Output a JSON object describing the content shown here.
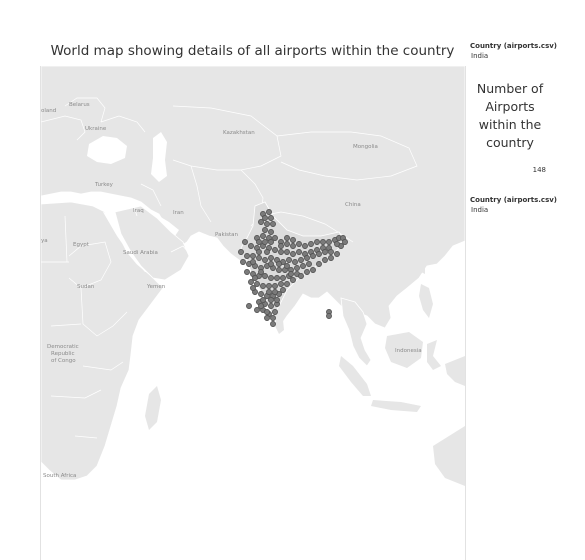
{
  "header": {
    "title": "World map showing details of all airports within the country"
  },
  "filters": [
    {
      "title": "Country (airports.csv)",
      "value": "India"
    },
    {
      "title": "Country (airports.csv)",
      "value": "India"
    }
  ],
  "kpi": {
    "heading": "Number of Airports within the country",
    "value": "148"
  },
  "map": {
    "labels": {
      "poland": "oland",
      "belarus": "Belarus",
      "ukraine": "Ukraine",
      "kazakhstan": "Kazakhstan",
      "mongolia": "Mongolia",
      "turkey": "Turkey",
      "iraq": "Iraq",
      "iran": "Iran",
      "china": "China",
      "pakistan": "Pakistan",
      "libya": "ya",
      "egypt": "Egypt",
      "saudi_arabia": "Saudi Arabia",
      "sudan": "Sudan",
      "yemen": "Yemen",
      "drc_line1": "Democratic",
      "drc_line2": "Republic",
      "drc_line3": "of Congo",
      "indonesia": "Indonesia",
      "south_africa": "South Africa"
    },
    "colors": {
      "land": "#e6e6e6",
      "water": "#ffffff",
      "border": "#ffffff",
      "marker_fill": "#7a7a7a",
      "marker_stroke": "#4a4a4a"
    }
  }
}
